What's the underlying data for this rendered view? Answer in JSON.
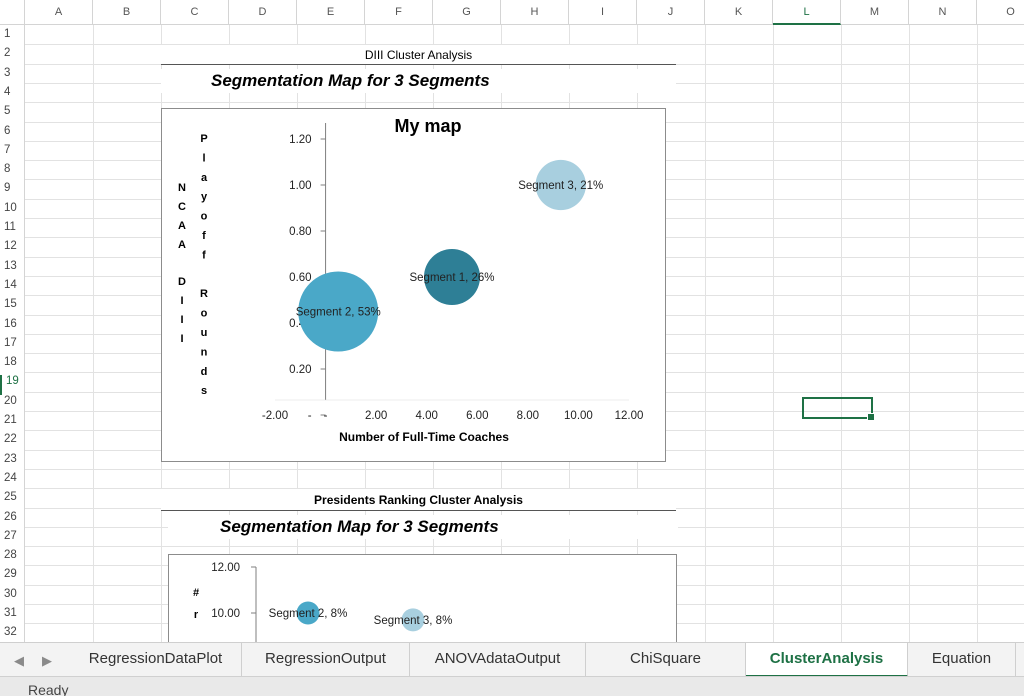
{
  "columns": [
    "A",
    "B",
    "C",
    "D",
    "E",
    "F",
    "G",
    "H",
    "I",
    "J",
    "K",
    "L",
    "M",
    "N",
    "O"
  ],
  "active_column": "L",
  "rows": [
    "1",
    "2",
    "3",
    "4",
    "5",
    "6",
    "7",
    "8",
    "9",
    "10",
    "11",
    "12",
    "13",
    "14",
    "15",
    "16",
    "17",
    "18",
    "19",
    "20",
    "21",
    "22",
    "23",
    "24",
    "25",
    "26",
    "27",
    "28",
    "29",
    "30",
    "31",
    "32"
  ],
  "active_row": "19",
  "section1": {
    "header": "DIII Cluster Analysis",
    "title": "Segmentation Map for 3 Segments"
  },
  "section2": {
    "header": "Presidents Ranking Cluster Analysis",
    "title": "Segmentation Map for 3 Segments"
  },
  "chart_data": [
    {
      "type": "scatter",
      "title": "My map",
      "xlabel": "Number of Full-Time Coaches",
      "ylabel_left": "NCAA DIII",
      "ylabel_right": "Playoff Rounds",
      "xlim": [
        -2,
        12
      ],
      "ylim": [
        0,
        1.2
      ],
      "x_ticks": [
        "-2.00",
        "-",
        "2.00",
        "4.00",
        "6.00",
        "8.00",
        "10.00",
        "12.00"
      ],
      "y_ticks": [
        "1.20",
        "1.00",
        "0.80",
        "0.60",
        "0.40",
        "0.20",
        "-"
      ],
      "points": [
        {
          "label": "Segment 1, 26%",
          "x": 5.0,
          "y": 0.6,
          "share": 26,
          "color": "#2e7f96"
        },
        {
          "label": "Segment 2, 53%",
          "x": 0.5,
          "y": 0.45,
          "share": 53,
          "color": "#4aa8c8"
        },
        {
          "label": "Segment 3, 21%",
          "x": 9.3,
          "y": 1.0,
          "share": 21,
          "color": "#a8cfdf"
        }
      ],
      "grid": false
    },
    {
      "type": "scatter",
      "title": "",
      "ylabel_left": "# r",
      "ylim": [
        8,
        12
      ],
      "y_ticks": [
        "12.00",
        "10.00"
      ],
      "points": [
        {
          "label": "Segment 2, 8%",
          "x": 1.0,
          "y": 10.0,
          "share": 8,
          "color": "#4aa8c8"
        },
        {
          "label": "Segment 3, 8%",
          "x": 3.5,
          "y": 9.7,
          "share": 8,
          "color": "#a8cfdf"
        }
      ]
    }
  ],
  "sheet_tabs": [
    "RegressionDataPlot",
    "RegressionOutput",
    "ANOVAdataOutput",
    "ChiSquare",
    "ClusterAnalysis",
    "Equation"
  ],
  "active_tab": "ClusterAnalysis",
  "status": "Ready",
  "icons": {
    "prev": "chevron-left-icon",
    "next": "chevron-right-icon"
  }
}
